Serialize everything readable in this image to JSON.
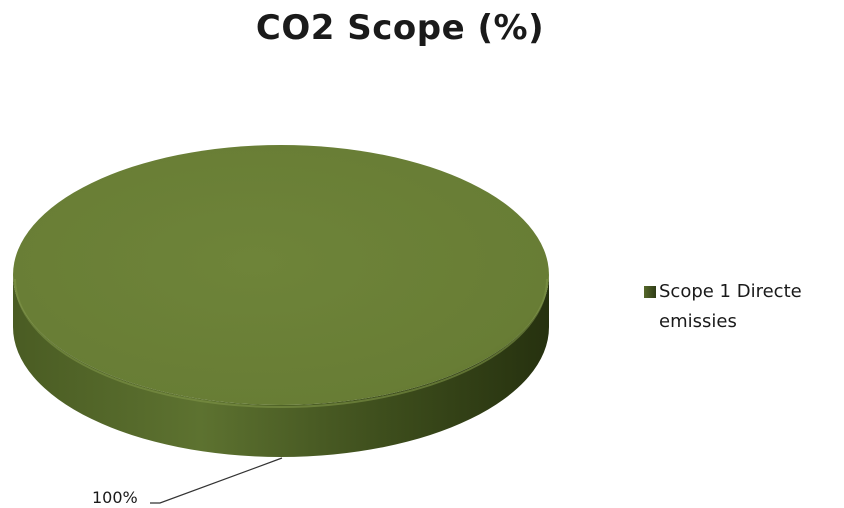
{
  "chart_data": {
    "type": "pie",
    "title": "CO2 Scope (%)",
    "slices": [
      {
        "name": "Scope 1 Directe emissies",
        "value": 100,
        "label": "100%"
      }
    ],
    "legend_position": "right",
    "style": "3d"
  },
  "colors": {
    "slice_top": "#6a7f37",
    "slice_side_dark": "#2f3c17",
    "slice_side_light": "#56682a",
    "leader_line": "#333333"
  }
}
